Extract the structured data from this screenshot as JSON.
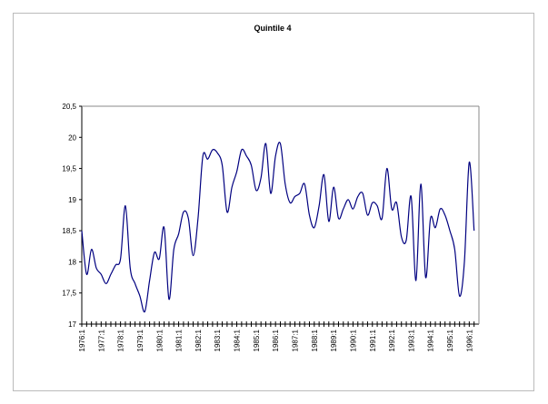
{
  "chart_data": {
    "type": "line",
    "title": "Quintile 4",
    "categories": [
      "1976:1",
      null,
      null,
      null,
      "1977:1",
      null,
      null,
      null,
      "1978:1",
      null,
      null,
      null,
      "1979:1",
      null,
      null,
      null,
      "1980:1",
      null,
      null,
      null,
      "1981:1",
      null,
      null,
      null,
      "1982:1",
      null,
      null,
      null,
      "1983:1",
      null,
      null,
      null,
      "1984:1",
      null,
      null,
      null,
      "1985:1",
      null,
      null,
      null,
      "1986:1",
      null,
      null,
      null,
      "1987:1",
      null,
      null,
      null,
      "1988:1",
      null,
      null,
      null,
      "1989:1",
      null,
      null,
      null,
      "1990:1",
      null,
      null,
      null,
      "1991:1",
      null,
      null,
      null,
      "1992:1",
      null,
      null,
      null,
      "1993:1",
      null,
      null,
      null,
      "1994:1",
      null,
      null,
      null,
      "1995:1",
      null,
      null,
      null,
      "1996:1",
      null
    ],
    "values": [
      18.5,
      17.8,
      18.2,
      17.9,
      17.8,
      17.65,
      17.8,
      17.95,
      18.05,
      18.9,
      17.9,
      17.65,
      17.45,
      17.2,
      17.7,
      18.15,
      18.05,
      18.55,
      17.4,
      18.2,
      18.45,
      18.8,
      18.7,
      18.1,
      18.7,
      19.7,
      19.65,
      19.8,
      19.75,
      19.55,
      18.8,
      19.2,
      19.45,
      19.8,
      19.7,
      19.55,
      19.15,
      19.35,
      19.9,
      19.1,
      19.7,
      19.9,
      19.25,
      18.95,
      19.05,
      19.1,
      19.25,
      18.75,
      18.55,
      18.9,
      19.4,
      18.65,
      19.2,
      18.7,
      18.85,
      19.0,
      18.85,
      19.05,
      19.1,
      18.75,
      18.95,
      18.9,
      18.7,
      19.5,
      18.85,
      18.95,
      18.4,
      18.35,
      19.05,
      17.7,
      19.25,
      17.75,
      18.7,
      18.55,
      18.85,
      18.75,
      18.5,
      18.2,
      17.45,
      18.0,
      19.6,
      18.5
    ],
    "color": "#000080",
    "ylim": [
      17,
      20.5
    ],
    "yticks": [
      17,
      {
        "value": 17.5,
        "label": "17,5"
      },
      18,
      {
        "value": 18.5,
        "label": "18,5"
      },
      19,
      {
        "value": 19.5,
        "label": "19,5"
      },
      20,
      {
        "value": 20.5,
        "label": "20,5"
      }
    ],
    "grid": false
  }
}
